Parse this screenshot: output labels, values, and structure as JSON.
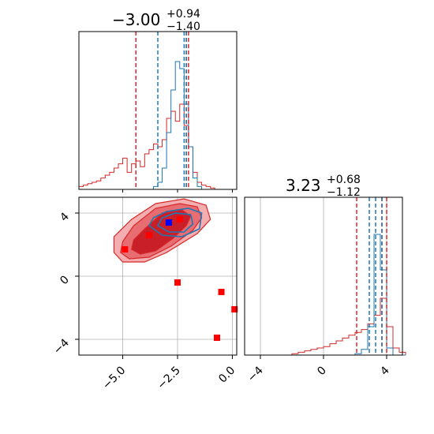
{
  "colors": {
    "red": "#d62728",
    "blue": "#1f77b4",
    "marker_red": "#ff0000",
    "marker_blue": "#0000ff"
  },
  "titles": {
    "p1": {
      "main": "−3.00",
      "sup": "+0.94",
      "sub": "−1.40"
    },
    "p2": {
      "main": "3.23",
      "sup": "+0.68",
      "sub": "−1.12"
    }
  },
  "chart_data": [
    {
      "type": "histogram",
      "panel": "marginal-p1",
      "xlim": [
        -7.0,
        0.2
      ],
      "quantiles_red": [
        -4.4,
        -2.1,
        -2.0
      ],
      "quantiles_blue": [
        -3.4,
        -2.2,
        -2.1
      ],
      "bins_x": [
        -7.0,
        -6.8,
        -6.6,
        -6.4,
        -6.2,
        -6.0,
        -5.8,
        -5.6,
        -5.4,
        -5.2,
        -5.0,
        -4.8,
        -4.6,
        -4.4,
        -4.2,
        -4.0,
        -3.8,
        -3.6,
        -3.4,
        -3.2,
        -3.0,
        -2.8,
        -2.6,
        -2.4,
        -2.2,
        -2.0,
        -1.8,
        -1.6,
        -1.4,
        -1.2,
        -1.0,
        -0.8,
        -0.6,
        -0.4,
        -0.2,
        0.0
      ],
      "red_counts": [
        0.02,
        0.03,
        0.04,
        0.05,
        0.06,
        0.08,
        0.1,
        0.12,
        0.15,
        0.18,
        0.22,
        0.12,
        0.18,
        0.2,
        0.16,
        0.25,
        0.28,
        0.32,
        0.3,
        0.35,
        0.5,
        0.55,
        0.48,
        0.6,
        0.45,
        0.3,
        0.12,
        0.05,
        0.03,
        0.02,
        0.01,
        0.0,
        0.0,
        0.0,
        0.0,
        0.0
      ],
      "blue_counts": [
        0,
        0,
        0,
        0,
        0,
        0,
        0,
        0,
        0,
        0,
        0,
        0,
        0,
        0,
        0,
        0,
        0,
        0.02,
        0.05,
        0.15,
        0.4,
        0.7,
        0.9,
        0.85,
        0.6,
        0.3,
        0.08,
        0.02,
        0,
        0,
        0,
        0,
        0,
        0,
        0,
        0
      ]
    },
    {
      "type": "scatter",
      "panel": "joint-p1-p2",
      "xlim": [
        -7.0,
        0.2
      ],
      "ylim": [
        -5.0,
        5.0
      ],
      "x_ticks": [
        -5.0,
        -2.5,
        0.0
      ],
      "x_tick_labels": [
        "−5.0",
        "−2.5",
        "0.0"
      ],
      "y_ticks": [
        -4,
        0,
        4
      ],
      "y_tick_labels": [
        "−4",
        "0",
        "4"
      ],
      "red_points": [
        [
          -4.9,
          1.7
        ],
        [
          -3.8,
          2.6
        ],
        [
          -2.4,
          3.6
        ],
        [
          -2.5,
          -0.4
        ],
        [
          -0.5,
          -1.0
        ],
        [
          -0.7,
          -3.9
        ],
        [
          0.1,
          -2.1
        ]
      ],
      "blue_points": [
        [
          -2.9,
          3.4
        ]
      ],
      "red_contours": [
        [
          [
            -5.4,
            1.5
          ],
          [
            -5.0,
            0.9
          ],
          [
            -4.0,
            0.9
          ],
          [
            -3.0,
            1.5
          ],
          [
            -1.6,
            2.7
          ],
          [
            -1.0,
            3.6
          ],
          [
            -1.2,
            4.5
          ],
          [
            -2.2,
            4.9
          ],
          [
            -3.5,
            4.6
          ],
          [
            -4.6,
            3.6
          ],
          [
            -5.4,
            2.5
          ]
        ],
        [
          [
            -5.1,
            1.5
          ],
          [
            -4.7,
            1.1
          ],
          [
            -3.8,
            1.2
          ],
          [
            -2.8,
            1.9
          ],
          [
            -1.8,
            2.9
          ],
          [
            -1.4,
            3.7
          ],
          [
            -1.6,
            4.4
          ],
          [
            -2.4,
            4.6
          ],
          [
            -3.5,
            4.3
          ],
          [
            -4.5,
            3.2
          ],
          [
            -5.0,
            2.2
          ]
        ],
        [
          [
            -4.6,
            1.7
          ],
          [
            -4.2,
            1.4
          ],
          [
            -3.5,
            1.6
          ],
          [
            -2.7,
            2.4
          ],
          [
            -2.1,
            3.2
          ],
          [
            -1.9,
            3.8
          ],
          [
            -2.3,
            4.2
          ],
          [
            -3.2,
            4.0
          ],
          [
            -4.0,
            3.0
          ],
          [
            -4.5,
            2.3
          ]
        ]
      ],
      "blue_contours": [
        [
          [
            -3.8,
            3.2
          ],
          [
            -3.2,
            2.6
          ],
          [
            -2.3,
            2.5
          ],
          [
            -1.5,
            3.0
          ],
          [
            -1.4,
            4.0
          ],
          [
            -2.0,
            4.3
          ],
          [
            -3.0,
            4.1
          ],
          [
            -3.6,
            3.7
          ]
        ],
        [
          [
            -3.4,
            3.2
          ],
          [
            -2.9,
            2.8
          ],
          [
            -2.2,
            2.8
          ],
          [
            -1.8,
            3.3
          ],
          [
            -1.9,
            3.9
          ],
          [
            -2.6,
            4.0
          ],
          [
            -3.2,
            3.7
          ]
        ]
      ]
    },
    {
      "type": "histogram",
      "panel": "marginal-p2",
      "xlim": [
        -5.0,
        5.0
      ],
      "x_ticks": [
        -4,
        0,
        4
      ],
      "x_tick_labels": [
        "−4",
        "0",
        "4"
      ],
      "quantiles_red": [
        2.1,
        3.7,
        4.0
      ],
      "quantiles_blue": [
        2.9,
        3.3,
        3.7
      ],
      "bins_x": [
        -2.0,
        -1.6,
        -1.2,
        -0.8,
        -0.4,
        0.0,
        0.4,
        0.8,
        1.2,
        1.6,
        2.0,
        2.4,
        2.8,
        3.2,
        3.6,
        4.0,
        4.4,
        4.8
      ],
      "red_counts": [
        0.01,
        0.02,
        0.03,
        0.04,
        0.05,
        0.06,
        0.08,
        0.1,
        0.12,
        0.14,
        0.16,
        0.18,
        0.22,
        0.28,
        0.4,
        0.2,
        0.05,
        0.02
      ],
      "blue_counts": [
        0,
        0,
        0,
        0,
        0,
        0,
        0,
        0,
        0,
        0,
        0.01,
        0.04,
        0.2,
        0.85,
        0.6,
        0.05,
        0.0,
        0.0
      ]
    }
  ]
}
